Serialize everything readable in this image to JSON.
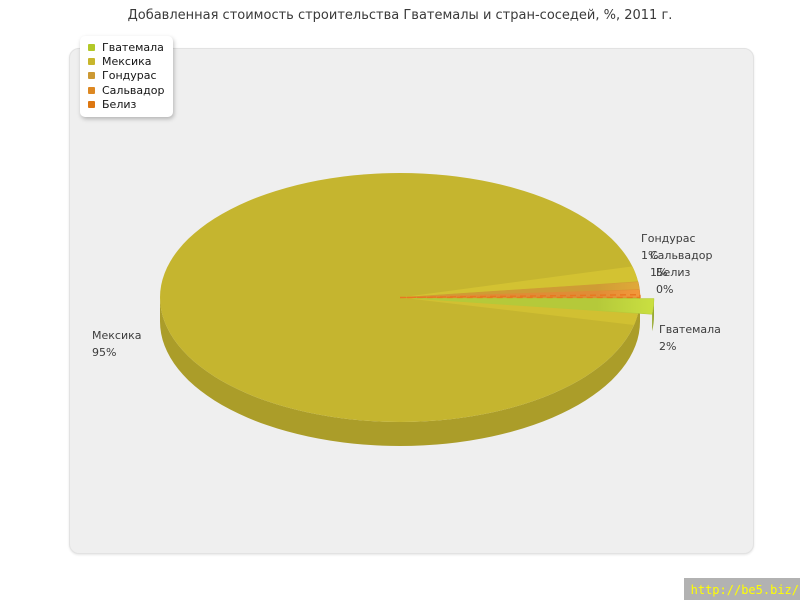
{
  "title": "Добавленная стоимость строительства Гватемалы и стран-соседей, %, 2011 г.",
  "legend": {
    "items": [
      {
        "label": "Гватемала",
        "color": "#b2c828"
      },
      {
        "label": "Мексика",
        "color": "#c8b62c"
      },
      {
        "label": "Гондурас",
        "color": "#cc9933"
      },
      {
        "label": "Сальвадор",
        "color": "#dd8822"
      },
      {
        "label": "Белиз",
        "color": "#dd7711"
      }
    ]
  },
  "chart_data": {
    "type": "pie",
    "title": "Добавленная стоимость строительства Гватемалы и стран-соседей, %, 2011 г.",
    "categories": [
      "Гватемала",
      "Мексика",
      "Гондурас",
      "Сальвадор",
      "Белиз"
    ],
    "values": [
      2,
      95,
      1,
      1,
      0
    ],
    "unit": "%",
    "colors": [
      "#b5c93a",
      "#c5b52f",
      "#cf9c35",
      "#e08c36",
      "#e87820"
    ],
    "legend_position": "top-left",
    "style": "pie3d",
    "exploded_slice": "Гватемала",
    "zero_slice_rendering": "dashed-outline"
  },
  "callouts": {
    "mexico": {
      "name": "Мексика",
      "pct": "95%"
    },
    "honduras": {
      "name": "Гондурас",
      "pct": "1%"
    },
    "salvador": {
      "name": "Сальвадор",
      "pct": "1%"
    },
    "belize": {
      "name": "Белиз",
      "pct": "0%"
    },
    "guatemala": {
      "name": "Гватемала",
      "pct": "2%"
    }
  },
  "footer": {
    "link": "http://be5.biz/"
  }
}
